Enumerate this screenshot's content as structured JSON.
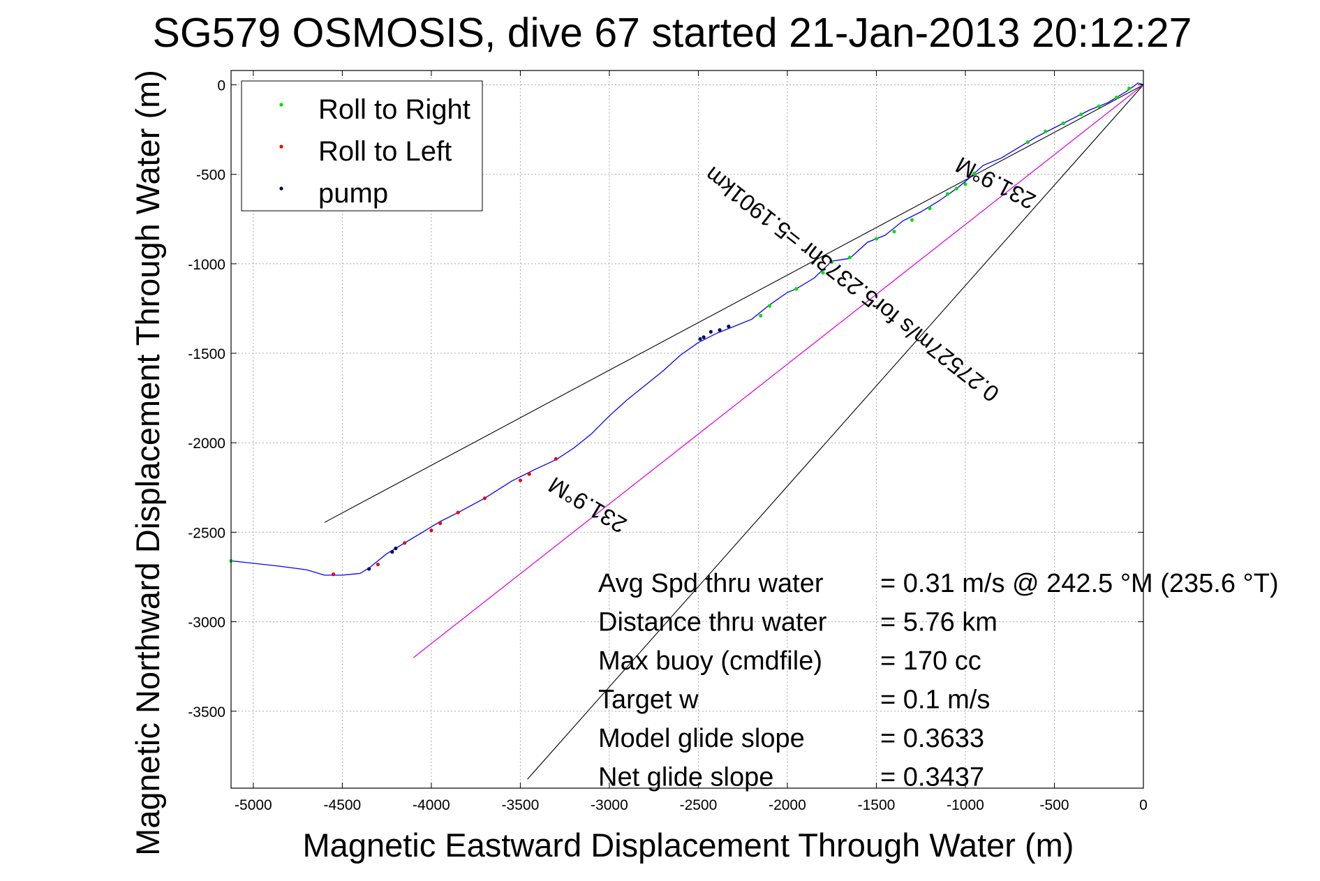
{
  "chart_data": {
    "type": "line",
    "title": "SG579 OSMOSIS, dive 67 started 21-Jan-2013 20:12:27",
    "xlabel": "Magnetic Eastward Displacement Through Water (m)",
    "ylabel": "Magnetic Northward Displacement Through Water (m)",
    "xlim": [
      -5125,
      0
    ],
    "ylim": [
      -3930,
      80
    ],
    "xticks": [
      -5000,
      -4500,
      -4000,
      -3500,
      -3000,
      -2500,
      -2000,
      -1500,
      -1000,
      -500,
      0
    ],
    "yticks": [
      0,
      -500,
      -1000,
      -1500,
      -2000,
      -2500,
      -3000,
      -3500
    ],
    "grid": true,
    "legend_position": "top-left",
    "legend": [
      {
        "name": "Roll to Right",
        "color": "#00dd00"
      },
      {
        "name": "Roll to Left",
        "color": "#ee0000"
      },
      {
        "name": "pump",
        "color": "#000066"
      }
    ],
    "track": {
      "color": "#0000ff",
      "points": [
        [
          -5125,
          -2660
        ],
        [
          -4850,
          -2690
        ],
        [
          -4700,
          -2710
        ],
        [
          -4600,
          -2740
        ],
        [
          -4500,
          -2740
        ],
        [
          -4400,
          -2730
        ],
        [
          -4350,
          -2700
        ],
        [
          -4250,
          -2620
        ],
        [
          -4150,
          -2560
        ],
        [
          -4050,
          -2500
        ],
        [
          -3950,
          -2440
        ],
        [
          -3850,
          -2390
        ],
        [
          -3700,
          -2310
        ],
        [
          -3550,
          -2215
        ],
        [
          -3420,
          -2150
        ],
        [
          -3300,
          -2095
        ],
        [
          -3200,
          -2030
        ],
        [
          -3100,
          -1950
        ],
        [
          -3000,
          -1850
        ],
        [
          -2900,
          -1760
        ],
        [
          -2800,
          -1680
        ],
        [
          -2700,
          -1600
        ],
        [
          -2600,
          -1510
        ],
        [
          -2500,
          -1440
        ],
        [
          -2400,
          -1390
        ],
        [
          -2300,
          -1350
        ],
        [
          -2200,
          -1310
        ],
        [
          -2100,
          -1230
        ],
        [
          -2000,
          -1160
        ],
        [
          -1950,
          -1140
        ],
        [
          -1850,
          -1080
        ],
        [
          -1750,
          -985
        ],
        [
          -1650,
          -970
        ],
        [
          -1550,
          -880
        ],
        [
          -1450,
          -840
        ],
        [
          -1350,
          -760
        ],
        [
          -1250,
          -710
        ],
        [
          -1150,
          -650
        ],
        [
          -1050,
          -580
        ],
        [
          -1000,
          -540
        ],
        [
          -900,
          -450
        ],
        [
          -800,
          -410
        ],
        [
          -700,
          -350
        ],
        [
          -600,
          -290
        ],
        [
          -500,
          -240
        ],
        [
          -400,
          -190
        ],
        [
          -300,
          -140
        ],
        [
          -200,
          -100
        ],
        [
          -100,
          -40
        ],
        [
          -50,
          -5
        ],
        [
          -30,
          10
        ],
        [
          -10,
          5
        ],
        [
          0,
          0
        ]
      ]
    },
    "markers_right": [
      [
        -5125,
        -2660
      ],
      [
        -1000,
        -555
      ],
      [
        -950,
        -495
      ],
      [
        -650,
        -320
      ],
      [
        -550,
        -260
      ],
      [
        -450,
        -215
      ],
      [
        -350,
        -165
      ],
      [
        -250,
        -120
      ],
      [
        -150,
        -70
      ],
      [
        -80,
        -20
      ],
      [
        -2150,
        -1290
      ],
      [
        -2100,
        -1235
      ],
      [
        -1950,
        -1140
      ],
      [
        -1800,
        -1050
      ],
      [
        -1750,
        -990
      ],
      [
        -1650,
        -965
      ],
      [
        -1500,
        -860
      ],
      [
        -1400,
        -820
      ],
      [
        -1300,
        -755
      ],
      [
        -1200,
        -690
      ],
      [
        -1100,
        -610
      ],
      [
        -1050,
        -580
      ]
    ],
    "markers_left": [
      [
        -4550,
        -2735
      ],
      [
        -4150,
        -2560
      ],
      [
        -4000,
        -2490
      ],
      [
        -3950,
        -2450
      ],
      [
        -3850,
        -2390
      ],
      [
        -3700,
        -2310
      ],
      [
        -3500,
        -2210
      ],
      [
        -3450,
        -2175
      ],
      [
        -3300,
        -2090
      ],
      [
        -4300,
        -2680
      ]
    ],
    "markers_pump": [
      [
        -4350,
        -2705
      ],
      [
        -4220,
        -2610
      ],
      [
        -4200,
        -2590
      ],
      [
        -2490,
        -1420
      ],
      [
        -2430,
        -1380
      ],
      [
        -2380,
        -1370
      ],
      [
        -2330,
        -1350
      ],
      [
        -2470,
        -1410
      ]
    ],
    "lines": [
      {
        "color": "#000000",
        "points": [
          [
            -4600,
            -2445
          ],
          [
            0,
            0
          ]
        ]
      },
      {
        "color": "#000000",
        "points": [
          [
            -3460,
            -3880
          ],
          [
            0,
            0
          ]
        ]
      },
      {
        "color": "#000000",
        "points": [
          [
            -4100,
            -3200
          ],
          [
            0,
            0
          ]
        ]
      },
      {
        "color": "#ff00ff",
        "points": [
          [
            -4100,
            -3200
          ],
          [
            0,
            0
          ]
        ]
      }
    ],
    "annotations": [
      {
        "text": "231.9°M",
        "x": -3100,
        "y": -2310,
        "angle": 211
      },
      {
        "text": "231.9°M",
        "x": -810,
        "y": -510,
        "angle": 207.5
      },
      {
        "text": "0.27527m/s for5.2373hr =5.1901km",
        "x": -1610,
        "y": -1080,
        "angle": 218
      }
    ],
    "stats": [
      {
        "label": "Avg Spd thru water",
        "value": "=  0.31 m/s @ 242.5 °M (235.6 °T)"
      },
      {
        "label": "Distance thru water",
        "value": "=  5.76 km"
      },
      {
        "label": "Max buoy (cmdfile)",
        "value": "= 170 cc"
      },
      {
        "label": "Target w",
        "value": "= 0.1 m/s"
      },
      {
        "label": "Model glide slope",
        "value": "= 0.3633"
      },
      {
        "label": "Net glide slope",
        "value": "= 0.3437"
      }
    ]
  }
}
